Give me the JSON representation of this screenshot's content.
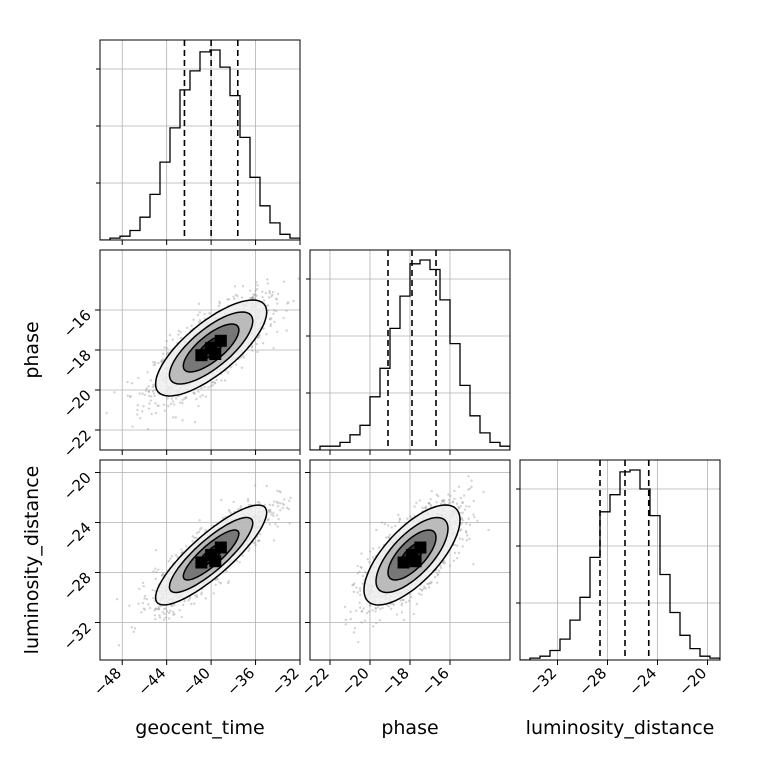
{
  "chart_data": {
    "type": "corner",
    "parameters": [
      "geocent_time",
      "phase",
      "luminosity_distance"
    ],
    "labels": {
      "geocent_time": "geocent_time",
      "phase": "phase",
      "luminosity_distance": "luminosity_distance"
    },
    "ranges": {
      "geocent_time": [
        -50.0,
        -32.0
      ],
      "phase": [
        -23.0,
        -13.0
      ],
      "luminosity_distance": [
        -35.0,
        -19.0
      ]
    },
    "ticks": {
      "geocent_time": [
        -48,
        -44,
        -40,
        -36,
        -32
      ],
      "phase": [
        -22,
        -20,
        -18,
        -16
      ],
      "luminosity_distance": [
        -32,
        -28,
        -24,
        -20
      ]
    },
    "tick_labels": {
      "geocent_time": [
        "−48",
        "−44",
        "−40",
        "−36",
        "−32"
      ],
      "phase": [
        "−22",
        "−20",
        "−18",
        "−16"
      ],
      "luminosity_distance": [
        "−32",
        "−28",
        "−24",
        "−20"
      ]
    },
    "quantiles": {
      "geocent_time": [
        -42.4,
        -40.0,
        -37.6
      ],
      "phase": [
        -19.1,
        -17.9,
        -16.7
      ],
      "luminosity_distance": [
        -28.6,
        -26.6,
        -24.7
      ]
    },
    "histograms": {
      "geocent_time": {
        "bins": [
          -50.0,
          -49.1,
          -48.2,
          -47.3,
          -46.4,
          -45.5,
          -44.6,
          -43.7,
          -42.8,
          -41.9,
          -41.0,
          -40.1,
          -39.2,
          -38.3,
          -37.4,
          -36.5,
          -35.6,
          -34.7,
          -33.8,
          -32.9,
          -32.0
        ],
        "counts": [
          0.0,
          0.01,
          0.02,
          0.05,
          0.12,
          0.24,
          0.41,
          0.59,
          0.79,
          0.89,
          0.99,
          1.0,
          0.91,
          0.76,
          0.54,
          0.33,
          0.18,
          0.09,
          0.03,
          0.01
        ]
      },
      "phase": {
        "bins": [
          -23.0,
          -22.5,
          -22.0,
          -21.5,
          -21.0,
          -20.5,
          -20.0,
          -19.5,
          -19.0,
          -18.5,
          -18.0,
          -17.5,
          -17.0,
          -16.5,
          -16.0,
          -15.5,
          -15.0,
          -14.5,
          -14.0,
          -13.5,
          -13.0
        ],
        "counts": [
          0.0,
          0.02,
          0.02,
          0.04,
          0.08,
          0.13,
          0.28,
          0.43,
          0.64,
          0.81,
          0.98,
          1.0,
          0.95,
          0.79,
          0.56,
          0.34,
          0.18,
          0.09,
          0.04,
          0.02
        ]
      },
      "luminosity_distance": {
        "bins": [
          -35.0,
          -34.2,
          -33.4,
          -32.6,
          -31.8,
          -31.0,
          -30.2,
          -29.4,
          -28.6,
          -27.8,
          -27.0,
          -26.2,
          -25.4,
          -24.6,
          -23.8,
          -23.0,
          -22.2,
          -21.4,
          -20.6,
          -19.8,
          -19.0
        ],
        "counts": [
          0.0,
          0.01,
          0.02,
          0.05,
          0.11,
          0.21,
          0.33,
          0.54,
          0.78,
          0.87,
          0.99,
          1.0,
          0.9,
          0.76,
          0.45,
          0.25,
          0.13,
          0.06,
          0.02,
          0.01
        ]
      }
    },
    "pairs": [
      {
        "x": "geocent_time",
        "y": "phase",
        "center": [
          -40.0,
          -17.9
        ],
        "sigma": [
          2.5,
          1.2
        ],
        "correlation": 0.75,
        "contours_sigma": [
          0.5,
          1.0,
          1.5,
          2.0
        ]
      },
      {
        "x": "geocent_time",
        "y": "luminosity_distance",
        "center": [
          -40.0,
          -26.6
        ],
        "sigma": [
          2.5,
          2.0
        ],
        "correlation": 0.85,
        "contours_sigma": [
          0.5,
          1.0,
          1.5,
          2.0
        ]
      },
      {
        "x": "phase",
        "y": "luminosity_distance",
        "center": [
          -17.9,
          -26.6
        ],
        "sigma": [
          1.2,
          2.0
        ],
        "correlation": 0.7,
        "contours_sigma": [
          0.5,
          1.0,
          1.5,
          2.0
        ]
      }
    ],
    "grid": true,
    "colors": {
      "line": "#000000",
      "points": "#9e9e9e",
      "grid": "#b0b0b0"
    }
  }
}
